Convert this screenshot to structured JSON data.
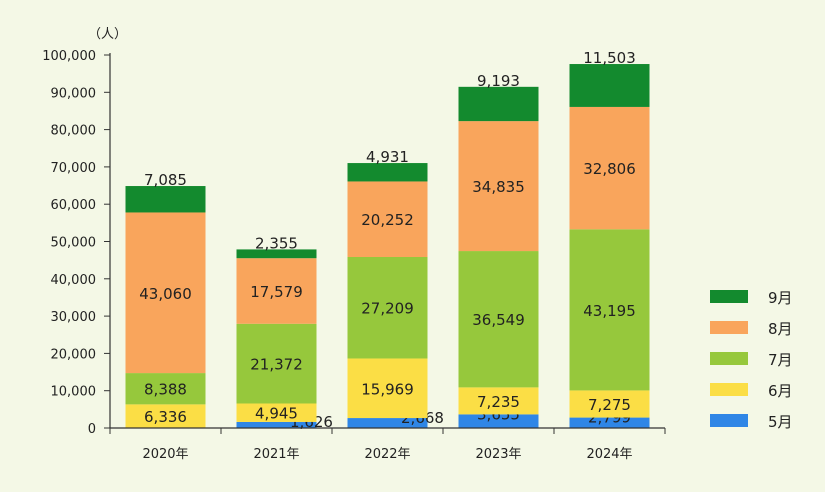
{
  "chart_data": {
    "type": "bar",
    "stacked": true,
    "unit_label": "（人）",
    "categories": [
      "2020年",
      "2021年",
      "2022年",
      "2023年",
      "2024年"
    ],
    "series": [
      {
        "name": "5月",
        "color": "#2f86e6",
        "values": [
          0,
          1626,
          2668,
          3655,
          2799
        ]
      },
      {
        "name": "6月",
        "color": "#fbde45",
        "values": [
          6336,
          4945,
          15969,
          7235,
          7275
        ]
      },
      {
        "name": "7月",
        "color": "#96c83c",
        "values": [
          8388,
          21372,
          27209,
          36549,
          43195
        ]
      },
      {
        "name": "8月",
        "color": "#f9a55c",
        "values": [
          43060,
          17579,
          20252,
          34835,
          32806
        ]
      },
      {
        "name": "9月",
        "color": "#138a2e",
        "values": [
          7085,
          2355,
          4931,
          9193,
          11503
        ]
      }
    ],
    "data_labels": [
      [
        "",
        "1,626",
        "2,668",
        "3,655",
        "2,799"
      ],
      [
        "6,336",
        "4,945",
        "15,969",
        "7,235",
        "7,275"
      ],
      [
        "8,388",
        "21,372",
        "27,209",
        "36,549",
        "43,195"
      ],
      [
        "43,060",
        "17,579",
        "20,252",
        "34,835",
        "32,806"
      ],
      [
        "7,085",
        "2,355",
        "4,931",
        "9,193",
        "11,503"
      ]
    ],
    "ylim": [
      0,
      100000
    ],
    "yticks": [
      0,
      10000,
      20000,
      30000,
      40000,
      50000,
      60000,
      70000,
      80000,
      90000,
      100000
    ],
    "ytick_labels": [
      "0",
      "10,000",
      "20,000",
      "30,000",
      "40,000",
      "50,000",
      "60,000",
      "70,000",
      "80,000",
      "90,000",
      "100,000"
    ],
    "legend_order": [
      "9月",
      "8月",
      "7月",
      "6月",
      "5月"
    ],
    "legend_position": "right",
    "grid": false
  }
}
